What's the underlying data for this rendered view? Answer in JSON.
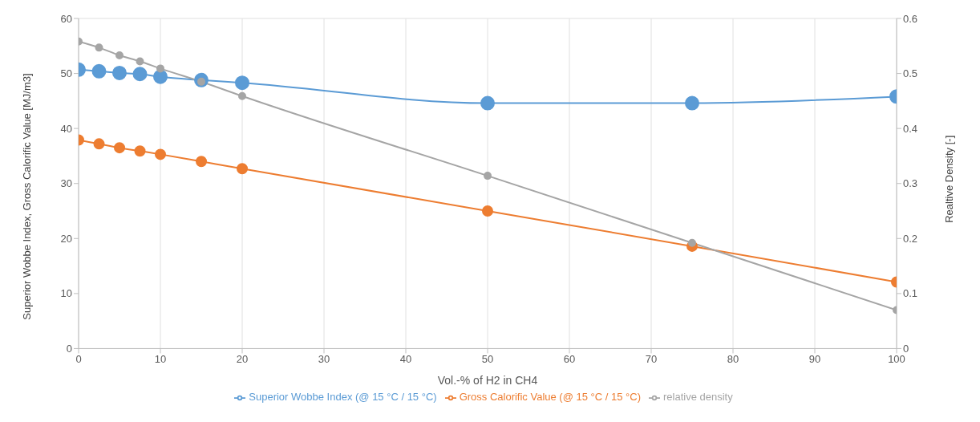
{
  "chart_data": {
    "type": "line",
    "x": [
      0,
      2.5,
      5,
      7.5,
      10,
      15,
      20,
      50,
      75,
      100
    ],
    "xlabel": "Vol.-% of H2 in CH4",
    "ylabel": "Superior Wobbe Index, Gross Calorific Value  [MJ/m3]",
    "y2label": "Realtive Density [-]",
    "xlim": [
      0,
      100
    ],
    "xticks": [
      0,
      10,
      20,
      30,
      40,
      50,
      60,
      70,
      80,
      90,
      100
    ],
    "ylim": [
      0,
      60
    ],
    "yticks": [
      0,
      10,
      20,
      30,
      40,
      50,
      60
    ],
    "y2lim": [
      0,
      0.6
    ],
    "y2ticks": [
      0,
      0.1,
      0.2,
      0.3,
      0.4,
      0.5,
      0.6
    ],
    "grid": true,
    "legend": "bottom",
    "marker": "circle",
    "line_style": "solid",
    "series": [
      {
        "name": "Superior Wobbe Index (@ 15 °C / 15 °C)",
        "color": "#5b9bd5",
        "values": [
          50.7,
          50.4,
          50.1,
          49.9,
          49.4,
          48.8,
          48.3,
          44.6,
          44.6,
          45.8
        ]
      },
      {
        "name": "Gross Calorific Value (@ 15 °C / 15 °C)",
        "color": "#ed7d31",
        "values": [
          37.9,
          37.2,
          36.5,
          35.9,
          35.3,
          34.0,
          32.7,
          25.0,
          18.6,
          12.1
        ]
      },
      {
        "name": "relative density",
        "color": "#a5a5a5",
        "axis": "y2",
        "values": [
          0.558,
          0.547,
          0.533,
          0.522,
          0.509,
          0.485,
          0.459,
          0.314,
          0.192,
          0.07
        ]
      }
    ]
  }
}
